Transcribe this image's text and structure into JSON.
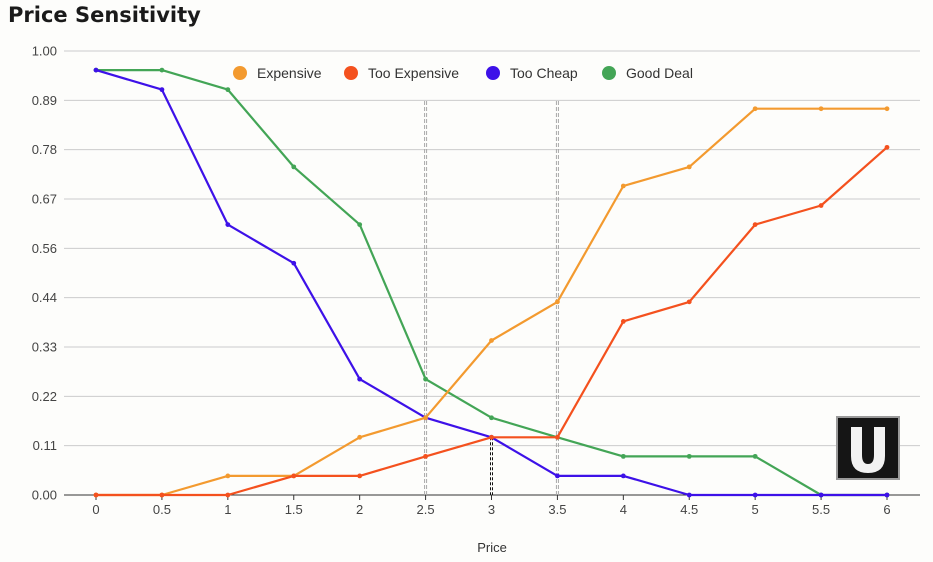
{
  "title": "Price Sensitivity",
  "logo": {
    "name": "U-logo",
    "letter": "U"
  },
  "chart_data": {
    "type": "line",
    "title": "Price Sensitivity",
    "xlabel": "Price",
    "ylabel": "",
    "x": [
      0,
      0.5,
      1,
      1.5,
      2,
      2.5,
      3,
      3.5,
      4,
      4.5,
      5,
      5.5,
      6
    ],
    "x_tick_labels": [
      "0",
      "0.5",
      "1",
      "1.5",
      "2",
      "2.5",
      "3",
      "3.5",
      "4",
      "4.5",
      "5",
      "5.5",
      "6"
    ],
    "y_tick_labels": [
      "1.00",
      "0.89",
      "0.78",
      "0.67",
      "0.56",
      "0.44",
      "0.33",
      "0.22",
      "0.11",
      "0.00"
    ],
    "ylim": [
      0,
      1
    ],
    "grid": true,
    "legend_position": "top",
    "series": [
      {
        "name": "Expensive",
        "color": "#f39a2f",
        "values": [
          0,
          0,
          0.043,
          0.043,
          0.13,
          0.174,
          0.348,
          0.435,
          0.696,
          0.739,
          0.87,
          0.87,
          0.87
        ]
      },
      {
        "name": "Too Expensive",
        "color": "#f4511e",
        "values": [
          0,
          0,
          0,
          0.043,
          0.043,
          0.087,
          0.13,
          0.13,
          0.391,
          0.435,
          0.609,
          0.652,
          0.783
        ]
      },
      {
        "name": "Too Cheap",
        "color": "#3d11e8",
        "values": [
          0.957,
          0.913,
          0.609,
          0.522,
          0.261,
          0.174,
          0.13,
          0.043,
          0.043,
          0,
          0,
          0,
          0
        ]
      },
      {
        "name": "Good Deal",
        "color": "#43a556",
        "values": [
          0.957,
          0.957,
          0.913,
          0.739,
          0.609,
          0.261,
          0.174,
          0.13,
          0.087,
          0.087,
          0.087,
          0,
          0
        ]
      }
    ],
    "reference_lines": [
      {
        "x": 2.5,
        "style": "gray-dashed"
      },
      {
        "x": 3.5,
        "style": "gray-dashed"
      },
      {
        "x": 3,
        "y": 0.13,
        "style": "black-dashed"
      }
    ]
  }
}
